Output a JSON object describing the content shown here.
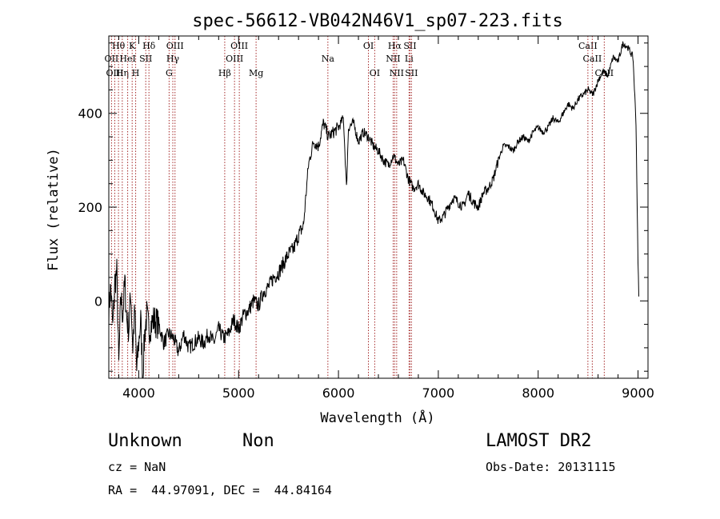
{
  "chart_data": {
    "type": "line",
    "title": "spec-56612-VB042N46V1_sp07-223.fits",
    "xlabel": "Wavelength (Å)",
    "ylabel": "Flux (relative)",
    "xlim": [
      3700,
      9100
    ],
    "ylim": [
      -165,
      565
    ],
    "xticks": [
      4000,
      5000,
      6000,
      7000,
      8000,
      9000
    ],
    "yticks": [
      0,
      200,
      400
    ],
    "grid": false,
    "line_color": "#000000",
    "line_marker_color": "#a52a2a",
    "series": [
      {
        "x": [
          3700,
          3720,
          3740,
          3760,
          3780,
          3800,
          3820,
          3840,
          3860,
          3880,
          3900,
          3920,
          3940,
          3960,
          3980,
          4000,
          4020,
          4040,
          4060,
          4080,
          4100,
          4150,
          4200,
          4250,
          4300,
          4350,
          4400,
          4450,
          4500,
          4550,
          4600,
          4650,
          4700,
          4750,
          4800,
          4850,
          4900,
          4950,
          5000,
          5050,
          5100,
          5150,
          5200,
          5250,
          5300,
          5350,
          5400,
          5450,
          5500,
          5550,
          5600,
          5650,
          5680,
          5700,
          5720,
          5750,
          5800,
          5850,
          5900,
          5950,
          6000,
          6050,
          6080,
          6100,
          6150,
          6200,
          6250,
          6300,
          6350,
          6400,
          6450,
          6500,
          6550,
          6600,
          6650,
          6700,
          6750,
          6800,
          6850,
          6900,
          6950,
          7000,
          7050,
          7100,
          7150,
          7200,
          7250,
          7300,
          7350,
          7400,
          7450,
          7500,
          7550,
          7600,
          7650,
          7700,
          7750,
          7800,
          7850,
          7900,
          7950,
          8000,
          8050,
          8100,
          8150,
          8200,
          8250,
          8300,
          8350,
          8400,
          8450,
          8500,
          8550,
          8600,
          8650,
          8700,
          8750,
          8800,
          8850,
          8900,
          8950,
          8980,
          9000,
          9010
        ],
        "values": [
          -20,
          30,
          -60,
          40,
          60,
          -140,
          10,
          -30,
          40,
          -40,
          -60,
          20,
          -100,
          -20,
          -150,
          -90,
          -40,
          -160,
          -70,
          -30,
          -60,
          -40,
          -50,
          -90,
          -70,
          -80,
          -110,
          -70,
          -100,
          -90,
          -80,
          -90,
          -70,
          -90,
          -60,
          -80,
          -70,
          -40,
          -60,
          -30,
          -20,
          0,
          -10,
          20,
          30,
          50,
          60,
          80,
          100,
          110,
          140,
          160,
          240,
          290,
          310,
          340,
          330,
          380,
          350,
          360,
          370,
          390,
          240,
          370,
          380,
          340,
          360,
          350,
          330,
          320,
          300,
          290,
          310,
          290,
          300,
          260,
          240,
          250,
          230,
          220,
          200,
          170,
          180,
          200,
          220,
          210,
          200,
          230,
          210,
          200,
          230,
          240,
          260,
          300,
          330,
          330,
          320,
          340,
          350,
          340,
          360,
          370,
          360,
          370,
          390,
          380,
          400,
          420,
          410,
          430,
          440,
          450,
          440,
          470,
          490,
          480,
          520,
          510,
          550,
          540,
          520,
          380,
          80,
          0
        ]
      }
    ],
    "lines": [
      {
        "label": "Hθ",
        "x": 3797,
        "row": 1
      },
      {
        "label": "OII",
        "x": 3727,
        "row": 2
      },
      {
        "label": "OIII",
        "x": 3760,
        "row": 3
      },
      {
        "label": "Hη",
        "x": 3835,
        "row": 3
      },
      {
        "label": "HeI",
        "x": 3889,
        "row": 2
      },
      {
        "label": "K",
        "x": 3934,
        "row": 1
      },
      {
        "label": "H",
        "x": 3969,
        "row": 3
      },
      {
        "label": "SII",
        "x": 4070,
        "row": 2
      },
      {
        "label": "Hδ",
        "x": 4102,
        "row": 1
      },
      {
        "label": "G",
        "x": 4304,
        "row": 3
      },
      {
        "label": "Hγ",
        "x": 4341,
        "row": 2
      },
      {
        "label": "OIII",
        "x": 4363,
        "row": 1
      },
      {
        "label": "Hβ",
        "x": 4861,
        "row": 3
      },
      {
        "label": "OIII",
        "x": 4959,
        "row": 2
      },
      {
        "label": "OIII",
        "x": 5007,
        "row": 1
      },
      {
        "label": "Mg",
        "x": 5175,
        "row": 3
      },
      {
        "label": "Na",
        "x": 5894,
        "row": 2
      },
      {
        "label": "OI",
        "x": 6300,
        "row": 1
      },
      {
        "label": "OI",
        "x": 6363,
        "row": 3
      },
      {
        "label": "NII",
        "x": 6548,
        "row": 2
      },
      {
        "label": "Hα",
        "x": 6563,
        "row": 1
      },
      {
        "label": "NII",
        "x": 6583,
        "row": 3
      },
      {
        "label": "Li",
        "x": 6707,
        "row": 2
      },
      {
        "label": "SII",
        "x": 6716,
        "row": 1
      },
      {
        "label": "SII",
        "x": 6731,
        "row": 3
      },
      {
        "label": "CaII",
        "x": 8498,
        "row": 1
      },
      {
        "label": "CaII",
        "x": 8542,
        "row": 2
      },
      {
        "label": "CaII",
        "x": 8662,
        "row": 3
      }
    ]
  },
  "info": {
    "class_label": "Unknown",
    "subclass_label": "Non",
    "survey_label": "LAMOST DR2",
    "cz_label": "cz = NaN",
    "obs_date_label": "Obs-Date: 20131115",
    "coords_label": "RA =  44.97091, DEC =  44.84164"
  }
}
